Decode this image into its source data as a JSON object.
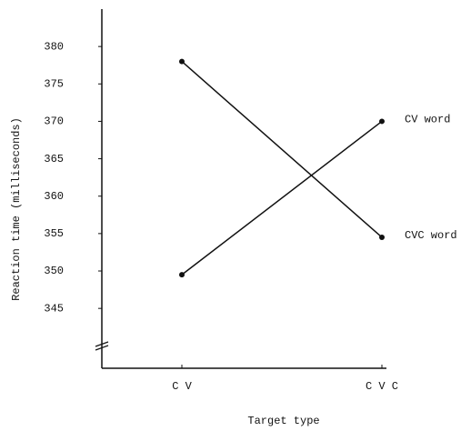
{
  "chart_data": {
    "type": "line",
    "x_label": "Target type",
    "y_label": "Reaction time (milliseconds)",
    "categories": [
      "C V",
      "C V C"
    ],
    "series": [
      {
        "name": "CV word",
        "color": "#111111",
        "values": [
          349.5,
          370
        ]
      },
      {
        "name": "CVC word",
        "color": "#111111",
        "values": [
          378,
          354.5
        ]
      }
    ],
    "ylim": [
      337,
      385
    ],
    "yticks": [
      345,
      350,
      355,
      360,
      365,
      370,
      375,
      380
    ],
    "grid": false
  }
}
